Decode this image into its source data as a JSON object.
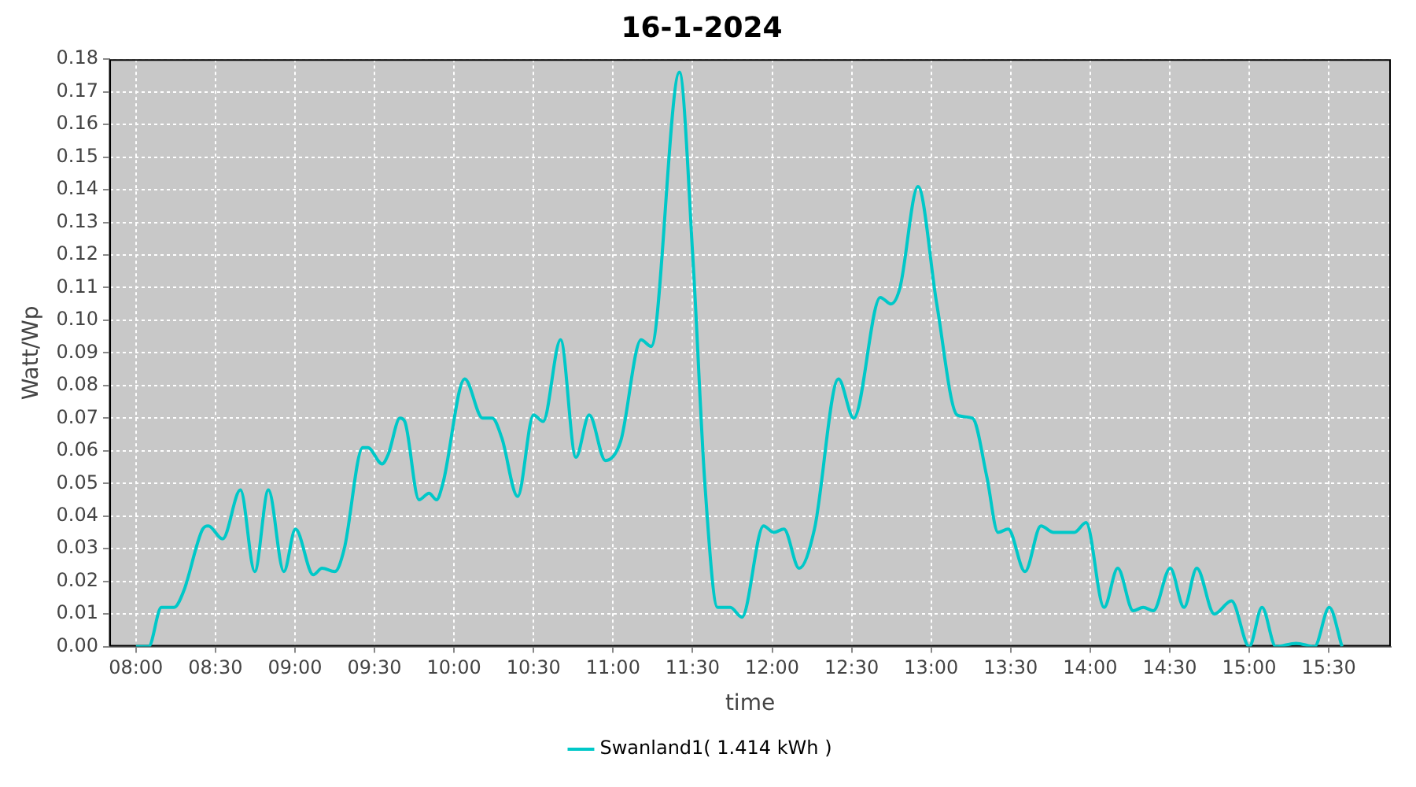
{
  "chart_data": {
    "type": "line",
    "title": "16-1-2024",
    "xlabel": "time",
    "ylabel": "Watt/Wp",
    "xlim": [
      7.833,
      15.89
    ],
    "ylim": [
      0,
      0.18
    ],
    "xticks": [
      {
        "value": 8,
        "label": "08:00"
      },
      {
        "value": 8.5,
        "label": "08:30"
      },
      {
        "value": 9,
        "label": "09:00"
      },
      {
        "value": 9.5,
        "label": "09:30"
      },
      {
        "value": 10,
        "label": "10:00"
      },
      {
        "value": 10.5,
        "label": "10:30"
      },
      {
        "value": 11,
        "label": "11:00"
      },
      {
        "value": 11.5,
        "label": "11:30"
      },
      {
        "value": 12,
        "label": "12:00"
      },
      {
        "value": 12.5,
        "label": "12:30"
      },
      {
        "value": 13,
        "label": "13:00"
      },
      {
        "value": 13.5,
        "label": "13:30"
      },
      {
        "value": 14,
        "label": "14:00"
      },
      {
        "value": 14.5,
        "label": "14:30"
      },
      {
        "value": 15,
        "label": "15:00"
      },
      {
        "value": 15.5,
        "label": "15:30"
      }
    ],
    "yticks": [
      {
        "value": 0,
        "label": "0.00"
      },
      {
        "value": 0.01,
        "label": "0.01"
      },
      {
        "value": 0.02,
        "label": "0.02"
      },
      {
        "value": 0.03,
        "label": "0.03"
      },
      {
        "value": 0.04,
        "label": "0.04"
      },
      {
        "value": 0.05,
        "label": "0.05"
      },
      {
        "value": 0.06,
        "label": "0.06"
      },
      {
        "value": 0.07,
        "label": "0.07"
      },
      {
        "value": 0.08,
        "label": "0.08"
      },
      {
        "value": 0.09,
        "label": "0.09"
      },
      {
        "value": 0.1,
        "label": "0.10"
      },
      {
        "value": 0.11,
        "label": "0.11"
      },
      {
        "value": 0.12,
        "label": "0.12"
      },
      {
        "value": 0.13,
        "label": "0.13"
      },
      {
        "value": 0.14,
        "label": "0.14"
      },
      {
        "value": 0.15,
        "label": "0.15"
      },
      {
        "value": 0.16,
        "label": "0.16"
      },
      {
        "value": 0.17,
        "label": "0.17"
      },
      {
        "value": 0.18,
        "label": "0.18"
      }
    ],
    "grid": true,
    "legend": "bottom",
    "marker": "none",
    "line_style": "solid",
    "series": [
      {
        "name": "Swanland1( 1.414 kWh )",
        "color": "#00c8c8",
        "x": [
          8.0,
          8.08,
          8.16,
          8.24,
          8.3,
          8.42,
          8.455,
          8.545,
          8.657,
          8.747,
          8.833,
          8.93,
          9.003,
          9.115,
          9.17,
          9.25,
          9.31,
          9.426,
          9.458,
          9.548,
          9.587,
          9.66,
          9.69,
          9.78,
          9.843,
          9.89,
          9.93,
          10.067,
          10.18,
          10.24,
          10.3,
          10.4,
          10.5,
          10.56,
          10.67,
          10.766,
          10.85,
          10.952,
          11.048,
          11.176,
          11.24,
          11.417,
          11.503,
          11.577,
          11.657,
          11.737,
          11.81,
          11.946,
          12.01,
          12.074,
          12.17,
          12.266,
          12.417,
          12.513,
          12.68,
          12.747,
          12.804,
          12.917,
          13.035,
          13.163,
          13.26,
          13.35,
          13.42,
          13.484,
          13.59,
          13.69,
          13.77,
          13.9,
          13.974,
          14.087,
          14.173,
          14.27,
          14.333,
          14.397,
          14.503,
          14.59,
          14.67,
          14.78,
          14.888,
          15.0,
          15.08,
          15.167,
          15.295,
          15.41,
          15.503,
          15.583
        ],
        "values": [
          0,
          0,
          0.012,
          0.012,
          0.017,
          0.036,
          0.037,
          0.033,
          0.048,
          0.023,
          0.048,
          0.023,
          0.036,
          0.022,
          0.024,
          0.023,
          0.03,
          0.061,
          0.061,
          0.056,
          0.059,
          0.07,
          0.069,
          0.045,
          0.047,
          0.045,
          0.05,
          0.082,
          0.07,
          0.07,
          0.064,
          0.046,
          0.071,
          0.069,
          0.094,
          0.058,
          0.071,
          0.057,
          0.063,
          0.094,
          0.092,
          0.176,
          0.118,
          0.05,
          0.012,
          0.012,
          0.009,
          0.037,
          0.035,
          0.036,
          0.024,
          0.036,
          0.082,
          0.07,
          0.107,
          0.105,
          0.11,
          0.141,
          0.105,
          0.071,
          0.07,
          0.052,
          0.035,
          0.036,
          0.023,
          0.037,
          0.035,
          0.035,
          0.038,
          0.012,
          0.024,
          0.011,
          0.012,
          0.011,
          0.024,
          0.012,
          0.024,
          0.01,
          0.014,
          0,
          0.012,
          0,
          0.001,
          0,
          0.012,
          0
        ]
      }
    ]
  }
}
